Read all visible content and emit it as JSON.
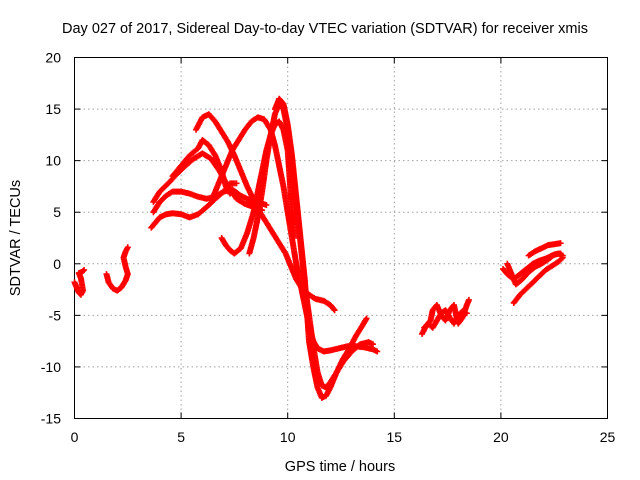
{
  "chart_data": {
    "type": "scatter",
    "title": "Day 027 of 2017, Sidereal Day-to-day VTEC variation (SDTVAR) for receiver xmis",
    "xlabel": "GPS time / hours",
    "ylabel": "SDTVAR / TECUs",
    "xlim": [
      0,
      25
    ],
    "ylim": [
      -15,
      20
    ],
    "xticks": [
      "0",
      "5",
      "10",
      "15",
      "20",
      "25"
    ],
    "yticks": [
      "20",
      "15",
      "10",
      "5",
      "0",
      "-5",
      "-10",
      "-15"
    ],
    "grid": true,
    "legend": "none",
    "marker": "plus",
    "color": "#ff0000",
    "series": [
      {
        "points": [
          [
            0.0,
            -1.8
          ],
          [
            0.1,
            -2.3
          ],
          [
            0.2,
            -2.8
          ],
          [
            0.3,
            -3.0
          ],
          [
            0.4,
            -2.6
          ],
          [
            0.3,
            -1.4
          ],
          [
            0.2,
            -0.9
          ],
          [
            0.35,
            -0.8
          ],
          [
            0.45,
            -0.6
          ]
        ]
      },
      {
        "points": [
          [
            1.5,
            -1.0
          ],
          [
            1.6,
            -1.8
          ],
          [
            1.8,
            -2.4
          ],
          [
            2.0,
            -2.6
          ],
          [
            2.2,
            -2.3
          ],
          [
            2.4,
            -1.6
          ],
          [
            2.5,
            -1.0
          ],
          [
            2.4,
            -0.3
          ],
          [
            2.3,
            0.6
          ],
          [
            2.4,
            1.2
          ],
          [
            2.5,
            1.6
          ]
        ]
      },
      {
        "points": [
          [
            3.6,
            3.5
          ],
          [
            3.8,
            4.0
          ],
          [
            4.0,
            4.5
          ],
          [
            4.3,
            4.8
          ],
          [
            4.6,
            4.9
          ],
          [
            5.0,
            4.8
          ],
          [
            5.4,
            4.5
          ],
          [
            5.8,
            4.8
          ],
          [
            6.2,
            5.5
          ],
          [
            6.6,
            6.3
          ],
          [
            7.0,
            7.0
          ],
          [
            7.3,
            7.8
          ],
          [
            7.6,
            7.8
          ]
        ]
      },
      {
        "points": [
          [
            3.7,
            5.0
          ],
          [
            4.0,
            6.0
          ],
          [
            4.3,
            6.6
          ],
          [
            4.6,
            7.0
          ],
          [
            5.0,
            7.0
          ],
          [
            5.4,
            6.8
          ],
          [
            5.8,
            6.5
          ],
          [
            6.2,
            6.3
          ],
          [
            6.6,
            6.5
          ],
          [
            7.0,
            7.0
          ],
          [
            7.4,
            7.2
          ],
          [
            7.8,
            6.6
          ],
          [
            8.2,
            6.2
          ],
          [
            8.6,
            6.0
          ],
          [
            9.0,
            5.7
          ]
        ]
      },
      {
        "points": [
          [
            3.7,
            6.0
          ],
          [
            4.0,
            7.0
          ],
          [
            4.4,
            7.8
          ],
          [
            4.8,
            8.7
          ],
          [
            5.2,
            9.5
          ],
          [
            5.6,
            10.2
          ],
          [
            6.0,
            10.7
          ],
          [
            6.4,
            10.2
          ],
          [
            6.8,
            9.0
          ],
          [
            7.2,
            7.5
          ],
          [
            7.6,
            6.3
          ],
          [
            8.0,
            5.8
          ],
          [
            8.4,
            5.5
          ],
          [
            8.8,
            5.2
          ]
        ]
      },
      {
        "points": [
          [
            4.6,
            8.5
          ],
          [
            5.0,
            9.5
          ],
          [
            5.4,
            10.5
          ],
          [
            5.8,
            11.2
          ],
          [
            6.0,
            12.0
          ],
          [
            6.3,
            11.5
          ],
          [
            6.6,
            10.5
          ],
          [
            6.9,
            9.0
          ],
          [
            7.1,
            7.5
          ],
          [
            7.3,
            6.8
          ]
        ]
      },
      {
        "points": [
          [
            5.7,
            13.0
          ],
          [
            6.0,
            14.2
          ],
          [
            6.3,
            14.5
          ],
          [
            6.6,
            13.8
          ],
          [
            6.9,
            12.8
          ],
          [
            7.2,
            11.8
          ],
          [
            7.5,
            10.5
          ],
          [
            7.8,
            9.0
          ],
          [
            8.1,
            7.5
          ],
          [
            8.4,
            6.2
          ],
          [
            8.7,
            5.0
          ],
          [
            9.0,
            4.0
          ],
          [
            9.3,
            3.0
          ],
          [
            9.6,
            2.0
          ],
          [
            9.9,
            1.0
          ],
          [
            10.1,
            0.0
          ],
          [
            10.4,
            -1.5
          ],
          [
            10.7,
            -2.5
          ],
          [
            11.0,
            -3.0
          ],
          [
            11.3,
            -3.4
          ],
          [
            11.7,
            -3.6
          ],
          [
            12.0,
            -4.0
          ],
          [
            12.2,
            -4.5
          ]
        ]
      },
      {
        "points": [
          [
            6.9,
            2.5
          ],
          [
            7.1,
            1.8
          ],
          [
            7.3,
            1.3
          ],
          [
            7.5,
            1.0
          ],
          [
            7.8,
            1.5
          ],
          [
            8.1,
            3.0
          ],
          [
            8.4,
            5.0
          ],
          [
            8.6,
            7.0
          ],
          [
            8.8,
            9.0
          ],
          [
            9.0,
            11.0
          ],
          [
            9.2,
            12.5
          ],
          [
            9.4,
            13.5
          ],
          [
            9.6,
            13.8
          ],
          [
            9.8,
            13.0
          ],
          [
            10.0,
            11.0
          ],
          [
            10.1,
            8.0
          ],
          [
            10.2,
            5.0
          ],
          [
            10.3,
            2.5
          ]
        ]
      },
      {
        "points": [
          [
            6.5,
            6.5
          ],
          [
            6.8,
            8.0
          ],
          [
            7.1,
            9.5
          ],
          [
            7.4,
            11.0
          ],
          [
            7.7,
            12.0
          ],
          [
            8.0,
            13.0
          ],
          [
            8.3,
            13.8
          ],
          [
            8.6,
            14.2
          ],
          [
            8.9,
            14.0
          ],
          [
            9.2,
            13.0
          ],
          [
            9.4,
            11.5
          ],
          [
            9.6,
            9.5
          ],
          [
            9.8,
            7.5
          ],
          [
            10.0,
            5.0
          ],
          [
            10.2,
            2.5
          ],
          [
            10.4,
            0.0
          ],
          [
            10.6,
            -2.0
          ],
          [
            10.8,
            -4.0
          ],
          [
            11.0,
            -6.0
          ],
          [
            11.2,
            -7.5
          ],
          [
            11.4,
            -8.2
          ],
          [
            11.7,
            -8.5
          ],
          [
            12.0,
            -8.4
          ],
          [
            12.4,
            -8.2
          ],
          [
            12.8,
            -8.0
          ],
          [
            13.2,
            -8.0
          ],
          [
            13.6,
            -8.1
          ],
          [
            14.0,
            -8.3
          ],
          [
            14.2,
            -8.5
          ]
        ]
      },
      {
        "points": [
          [
            8.2,
            1.0
          ],
          [
            8.4,
            2.5
          ],
          [
            8.6,
            4.5
          ],
          [
            8.8,
            7.0
          ],
          [
            9.0,
            10.0
          ],
          [
            9.2,
            12.5
          ],
          [
            9.4,
            14.5
          ],
          [
            9.6,
            15.5
          ],
          [
            9.8,
            15.0
          ],
          [
            10.0,
            13.0
          ],
          [
            10.2,
            10.0
          ],
          [
            10.4,
            6.0
          ],
          [
            10.6,
            2.0
          ],
          [
            10.8,
            -2.0
          ],
          [
            11.0,
            -5.0
          ],
          [
            11.2,
            -8.0
          ],
          [
            11.4,
            -10.5
          ],
          [
            11.6,
            -11.8
          ],
          [
            11.8,
            -12.0
          ],
          [
            12.0,
            -11.5
          ],
          [
            12.3,
            -10.5
          ],
          [
            12.6,
            -9.5
          ],
          [
            13.0,
            -8.5
          ],
          [
            13.4,
            -7.8
          ],
          [
            13.8,
            -7.6
          ],
          [
            14.0,
            -7.8
          ]
        ]
      },
      {
        "points": [
          [
            9.4,
            15.0
          ],
          [
            9.6,
            16.0
          ],
          [
            9.8,
            15.5
          ],
          [
            10.0,
            13.5
          ],
          [
            10.2,
            10.5
          ],
          [
            10.4,
            6.5
          ],
          [
            10.6,
            2.5
          ],
          [
            10.8,
            -1.5
          ],
          [
            10.9,
            -4.5
          ],
          [
            11.0,
            -7.5
          ],
          [
            11.2,
            -10.0
          ],
          [
            11.4,
            -12.0
          ],
          [
            11.6,
            -13.0
          ],
          [
            11.8,
            -12.8
          ],
          [
            12.0,
            -12.0
          ],
          [
            12.3,
            -10.5
          ],
          [
            12.6,
            -9.2
          ],
          [
            12.9,
            -8.2
          ],
          [
            13.2,
            -7.0
          ],
          [
            13.5,
            -6.0
          ],
          [
            13.7,
            -5.3
          ]
        ]
      },
      {
        "points": [
          [
            16.3,
            -6.8
          ],
          [
            16.5,
            -6.0
          ],
          [
            16.7,
            -5.5
          ],
          [
            16.8,
            -4.5
          ],
          [
            17.0,
            -4.0
          ],
          [
            17.2,
            -5.0
          ],
          [
            17.4,
            -5.5
          ],
          [
            17.6,
            -4.5
          ],
          [
            17.8,
            -4.0
          ],
          [
            17.9,
            -5.0
          ],
          [
            18.0,
            -5.8
          ],
          [
            18.2,
            -5.2
          ],
          [
            18.4,
            -4.0
          ],
          [
            18.5,
            -3.5
          ]
        ]
      },
      {
        "points": [
          [
            16.4,
            -6.2
          ],
          [
            16.6,
            -5.8
          ],
          [
            16.8,
            -6.2
          ],
          [
            17.0,
            -5.5
          ],
          [
            17.2,
            -4.8
          ],
          [
            17.4,
            -4.5
          ],
          [
            17.6,
            -5.2
          ],
          [
            17.8,
            -5.8
          ],
          [
            18.0,
            -5.0
          ],
          [
            18.2,
            -4.6
          ],
          [
            18.4,
            -4.8
          ]
        ]
      },
      {
        "points": [
          [
            20.1,
            -0.5
          ],
          [
            20.3,
            -1.0
          ],
          [
            20.6,
            -1.5
          ],
          [
            20.9,
            -1.0
          ],
          [
            21.2,
            -0.5
          ],
          [
            21.5,
            0.0
          ],
          [
            21.8,
            0.3
          ],
          [
            22.1,
            0.5
          ],
          [
            22.4,
            0.8
          ],
          [
            22.7,
            1.0
          ],
          [
            22.9,
            0.8
          ]
        ]
      },
      {
        "points": [
          [
            20.6,
            -3.8
          ],
          [
            20.9,
            -3.0
          ],
          [
            21.2,
            -2.4
          ],
          [
            21.5,
            -1.8
          ],
          [
            21.8,
            -1.2
          ],
          [
            22.1,
            -0.6
          ],
          [
            22.4,
            -0.2
          ],
          [
            22.7,
            0.2
          ],
          [
            22.9,
            0.6
          ]
        ]
      },
      {
        "points": [
          [
            20.3,
            0.0
          ],
          [
            20.5,
            -1.0
          ],
          [
            20.7,
            -2.0
          ],
          [
            21.0,
            -1.5
          ],
          [
            21.3,
            -0.8
          ],
          [
            21.6,
            -0.3
          ],
          [
            21.9,
            0.0
          ],
          [
            22.2,
            0.4
          ],
          [
            22.5,
            0.9
          ],
          [
            22.8,
            1.0
          ]
        ]
      },
      {
        "points": [
          [
            21.3,
            0.8
          ],
          [
            21.6,
            1.2
          ],
          [
            21.9,
            1.5
          ],
          [
            22.2,
            1.8
          ],
          [
            22.5,
            1.9
          ],
          [
            22.8,
            2.0
          ]
        ]
      }
    ]
  }
}
